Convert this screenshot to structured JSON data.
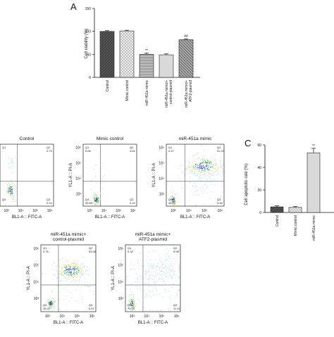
{
  "chart_data": [
    {
      "panel": "A",
      "type": "bar",
      "ylabel": "Cell viability (%)",
      "ylim": [
        0,
        150
      ],
      "yticks": [
        "0",
        "50",
        "100",
        "150"
      ],
      "categories": [
        "Control",
        "Mimic control",
        "miR-451a mimic",
        "miR-451a mimic+\ncontrol-plasmid",
        "miR-451a mimic+\nATF2-plasmid"
      ],
      "values": [
        100,
        101,
        50,
        49,
        82
      ],
      "errors": [
        1.5,
        1.5,
        3,
        2,
        2
      ],
      "annotations": [
        "",
        "",
        "**",
        "",
        "##"
      ]
    },
    {
      "panel": "C",
      "type": "bar",
      "ylabel": "Cell apoptotic rate (%)",
      "ylim": [
        0,
        60
      ],
      "yticks": [
        "0",
        "20",
        "40",
        "60"
      ],
      "categories": [
        "Control",
        "Mimic control",
        "miR-451a mimic"
      ],
      "values": [
        5,
        4.5,
        53
      ],
      "errors": [
        1,
        0.8,
        4
      ],
      "annotations": [
        "",
        "",
        "**"
      ]
    },
    {
      "panel": "B",
      "type": "scatter",
      "xlabel": "BL1-A :: FITC-A",
      "ylabel": "YL1-A :: PI-A",
      "plots": [
        {
          "title": "Control",
          "q1": "",
          "q2": "4.73",
          "q3": "0.24",
          "q4": ""
        },
        {
          "title": "Mimic control",
          "q1": "0.06",
          "q2": "4.01",
          "q3": "0.24",
          "q4": "95.69"
        },
        {
          "title": "miR-451a mimic",
          "q1": "0.47",
          "q2": "51.22",
          "q3": "3.30",
          "q4": "45.01"
        },
        {
          "title": "miR-451a mimic+\ncontrol-plasmid",
          "q1": "0.76",
          "q2": "53.96",
          "q3": "0.57",
          "q4": "45.22"
        },
        {
          "title": "miR-451a mimic+\nATF2-plasmid",
          "q1": "0.32",
          "q2": "9.08",
          "q3": "11.41",
          "q4": "79.19"
        }
      ]
    }
  ],
  "labels": {
    "panel_a": "A",
    "panel_c": "C"
  },
  "colors": {
    "bar_dark": "#555555",
    "bar_light": "#d9d9d9",
    "density_high": "#1f1fd0",
    "density_low": "#9fd7e8"
  }
}
